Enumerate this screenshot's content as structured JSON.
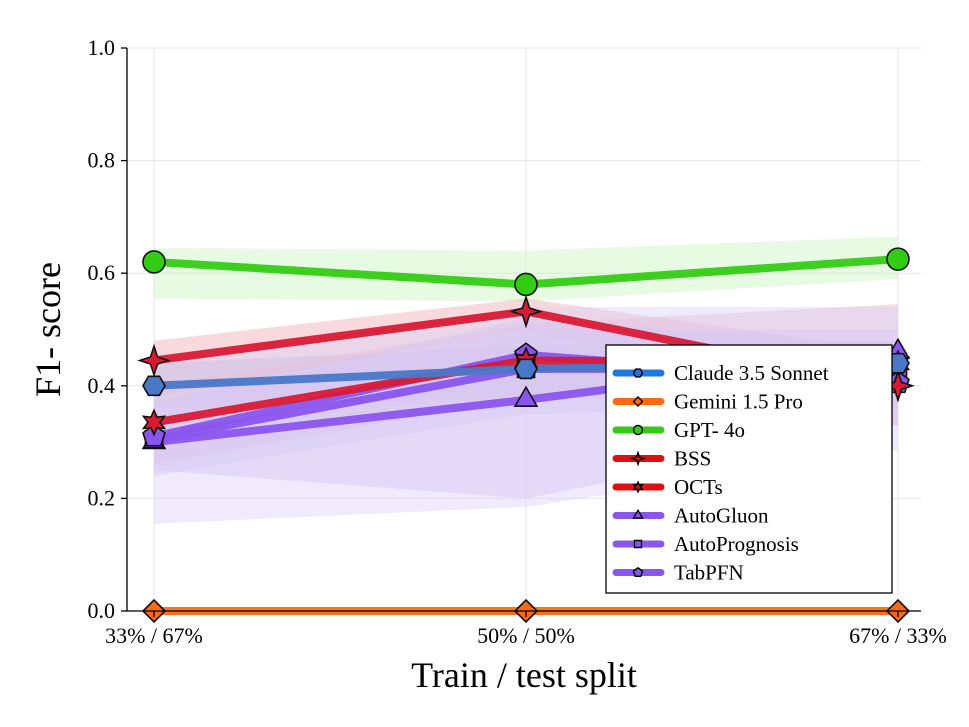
{
  "chart_data": {
    "type": "line",
    "title": "",
    "xlabel": "Train / test split",
    "ylabel": "F1- score",
    "categories": [
      "33% / 67%",
      "50% / 50%",
      "67% / 33%"
    ],
    "ylim": [
      0.0,
      1.0
    ],
    "yticks": [
      "0.0",
      "0.2",
      "0.4",
      "0.6",
      "0.8",
      "1.0"
    ],
    "grid": true,
    "legend_position": "center-right",
    "series": [
      {
        "name": "Claude 3.5 Sonnet",
        "color": "#4a78c8",
        "legend_color": "#1f77e0",
        "marker": "hexagon",
        "values": [
          0.4,
          0.43,
          0.44
        ],
        "band_lower": [
          0.36,
          0.38,
          0.4
        ],
        "band_upper": [
          0.44,
          0.47,
          0.48
        ],
        "band_color": "#9ab6e6"
      },
      {
        "name": "Gemini 1.5 Pro",
        "color": "#ff6a10",
        "legend_color": "#ff6a10",
        "marker": "diamond",
        "values": [
          0.0,
          0.0,
          0.0
        ]
      },
      {
        "name": "GPT- 4o",
        "color": "#33cc14",
        "legend_color": "#33cc14",
        "marker": "circle",
        "values": [
          0.62,
          0.58,
          0.625
        ],
        "band_lower": [
          0.555,
          0.55,
          0.59
        ],
        "band_upper": [
          0.645,
          0.64,
          0.665
        ],
        "band_color": "#c9f3bf"
      },
      {
        "name": "BSS",
        "color": "#d91a35",
        "legend_color": "#dd1111",
        "marker": "star4",
        "values": [
          0.445,
          0.532,
          0.4
        ],
        "band_lower": [
          0.38,
          0.5,
          0.33
        ],
        "band_upper": [
          0.48,
          0.555,
          0.46
        ],
        "band_color": "#f0aab4"
      },
      {
        "name": "OCTs",
        "color": "#d91a35",
        "legend_color": "#dd1111",
        "marker": "star6",
        "values": [
          0.335,
          0.445,
          0.44
        ],
        "band_lower": [
          0.26,
          0.38,
          0.37
        ],
        "band_upper": [
          0.4,
          0.51,
          0.545
        ],
        "band_color": "#e8b3c4"
      },
      {
        "name": "AutoGluon",
        "color": "#8a55ee",
        "legend_color": "#8a55ee",
        "marker": "triangle",
        "values": [
          0.3,
          0.375,
          0.46
        ],
        "band_lower": [
          0.155,
          0.185,
          0.285
        ],
        "band_upper": [
          0.44,
          0.54,
          0.54
        ],
        "band_color": "#dcd0f8"
      },
      {
        "name": "AutoPrognosis",
        "color": "#8a55ee",
        "legend_color": "#8a55ee",
        "marker": "square",
        "values": [
          0.305,
          0.43,
          0.43
        ],
        "band_lower": [
          0.24,
          0.35,
          0.36
        ],
        "band_upper": [
          0.37,
          0.5,
          0.5
        ],
        "band_color": "#d6c8f4"
      },
      {
        "name": "TabPFN",
        "color": "#8a55ee",
        "legend_color": "#8a55ee",
        "marker": "pentagon",
        "values": [
          0.31,
          0.455,
          0.405
        ],
        "band_lower": [
          0.25,
          0.2,
          0.33
        ],
        "band_upper": [
          0.37,
          0.52,
          0.47
        ],
        "band_color": "#d6c8f4"
      }
    ]
  }
}
